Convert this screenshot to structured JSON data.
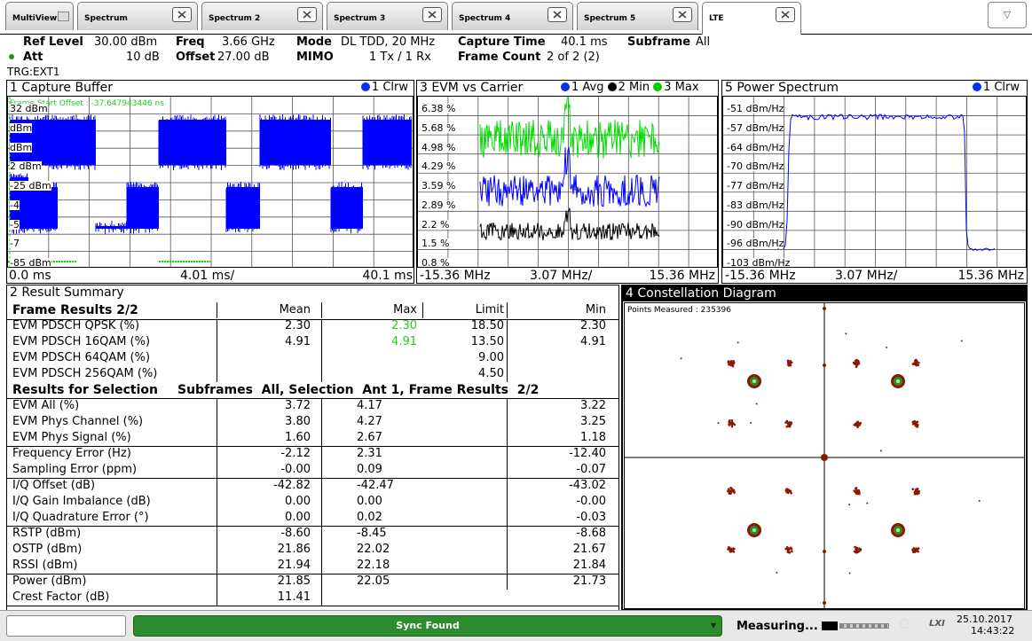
{
  "tabs": [
    {
      "label": "MultiView"
    },
    {
      "label": "Spectrum"
    },
    {
      "label": "Spectrum 2"
    },
    {
      "label": "Spectrum 3"
    },
    {
      "label": "Spectrum 4"
    },
    {
      "label": "Spectrum 5"
    },
    {
      "label": "LTE"
    }
  ],
  "header": {
    "ref_level_label": "Ref Level",
    "ref_level_value": "30.00 dBm",
    "att_label": "Att",
    "att_value": "10 dB",
    "freq_label": "Freq",
    "freq_value": "3.66 GHz",
    "offset_label": "Offset",
    "offset_value": "27.00 dB",
    "mode_label": "Mode",
    "mode_value": "DL TDD, 20 MHz",
    "mimo_label": "MIMO",
    "mimo_value": "1 Tx / 1 Rx",
    "capture_time_label": "Capture Time",
    "capture_time_value": "40.1 ms",
    "frame_count_label": "Frame Count",
    "frame_count_value": "2 of 2 (2)",
    "subframe_label": "Subframe",
    "subframe_value": "All",
    "trigger": "TRG:EXT1"
  },
  "capture_buffer": {
    "title": "1 Capture Buffer",
    "trace": "1 Clrw",
    "annotation": "Frame Start Offset : -37.647943446 ns",
    "y_labels": [
      "32 dBm",
      "dBm",
      "dBm",
      "2 dBm",
      "-25 dBm",
      "-4",
      "-5",
      "-7",
      "-85 dBm"
    ],
    "x_start": "0.0 ms",
    "x_div": "4.01 ms/",
    "x_end": "40.1 ms"
  },
  "evm_carrier": {
    "title": "3 EVM vs Carrier",
    "trace1": "1 Avg",
    "trace2": "2 Min",
    "trace3": "3 Max",
    "y_labels": [
      "6.38 %",
      "5.68 %",
      "4.98 %",
      "4.29 %",
      "3.59 %",
      "2.89 %",
      "2.2 %",
      "1.5 %",
      "0.8 %"
    ],
    "x_start": "-15.36 MHz",
    "x_div": "3.07 MHz/",
    "x_end": "15.36 MHz"
  },
  "power_spectrum": {
    "title": "5 Power Spectrum",
    "trace": "1 Clrw",
    "y_labels": [
      "-51 dBm/Hz",
      "-57 dBm/Hz",
      "-64 dBm/Hz",
      "-70 dBm/Hz",
      "-77 dBm/Hz",
      "-83 dBm/Hz",
      "-90 dBm/Hz",
      "-96 dBm/Hz",
      "-103 dBm/Hz"
    ],
    "x_start": "-15.36 MHz",
    "x_div": "3.07 MHz/",
    "x_end": "15.36 MHz"
  },
  "result_summary": {
    "title": "2 Result Summary",
    "header": {
      "label": "Frame Results 2/2",
      "mean": "Mean",
      "max": "Max",
      "limit": "Limit",
      "min": "Min"
    },
    "frame_rows": [
      {
        "label": "EVM PDSCH QPSK (%)",
        "mean": "2.30",
        "max": "2.30",
        "limit": "18.50",
        "min": "2.30"
      },
      {
        "label": "EVM PDSCH 16QAM (%)",
        "mean": "4.91",
        "max": "4.91",
        "limit": "13.50",
        "min": "4.91"
      },
      {
        "label": "EVM PDSCH 64QAM (%)",
        "mean": "",
        "max": "",
        "limit": "9.00",
        "min": ""
      },
      {
        "label": "EVM PDSCH 256QAM (%)",
        "mean": "",
        "max": "",
        "limit": "4.50",
        "min": ""
      }
    ],
    "selection_label": "Results for Selection",
    "selection_value": "Subframes  All, Selection  Ant 1, Frame Results  2/2",
    "rows": [
      {
        "label": "EVM All (%)",
        "mean": "3.72",
        "max": "4.17",
        "min": "3.22"
      },
      {
        "label": "EVM Phys Channel (%)",
        "mean": "3.80",
        "max": "4.27",
        "min": "3.25"
      },
      {
        "label": "EVM Phys Signal (%)",
        "mean": "1.60",
        "max": "2.67",
        "min": "1.18"
      },
      {
        "label": "Frequency Error (Hz)",
        "mean": "-2.12",
        "max": "2.31",
        "min": "-12.40"
      },
      {
        "label": "Sampling Error (ppm)",
        "mean": "-0.00",
        "max": "0.09",
        "min": "-0.07"
      },
      {
        "label": "I/Q Offset (dB)",
        "mean": "-42.82",
        "max": "-42.47",
        "min": "-43.02"
      },
      {
        "label": "I/Q Gain Imbalance (dB)",
        "mean": "0.00",
        "max": "0.00",
        "min": "-0.00"
      },
      {
        "label": "I/Q Quadrature Error (°)",
        "mean": "0.00",
        "max": "0.02",
        "min": "-0.03"
      },
      {
        "label": "RSTP (dBm)",
        "mean": "-8.60",
        "max": "-8.45",
        "min": "-8.68"
      },
      {
        "label": "OSTP (dBm)",
        "mean": "21.86",
        "max": "22.02",
        "min": "21.67"
      },
      {
        "label": "RSSI (dBm)",
        "mean": "21.94",
        "max": "22.18",
        "min": "21.84"
      },
      {
        "label": "Power (dBm)",
        "mean": "21.85",
        "max": "22.05",
        "min": "21.73"
      },
      {
        "label": "Crest Factor (dB)",
        "mean": "11.41",
        "max": "",
        "min": ""
      }
    ]
  },
  "constellation": {
    "title": "4 Constellation Diagram",
    "points_label": "Points Measured : 235396"
  },
  "status": {
    "sync": "Sync Found",
    "measuring": "Measuring...",
    "date": "25.10.2017",
    "time": "14:43:22",
    "lxi": "LXI"
  },
  "colors": {
    "trace_blue": "#0000ff",
    "trace_green": "#00dd00",
    "trace_black": "#000000",
    "constellation_dark": "#8b1a00",
    "constellation_green": "#2e8b2e",
    "sync_green": "#2e8b2e",
    "panel_title_bg": "#000000"
  }
}
